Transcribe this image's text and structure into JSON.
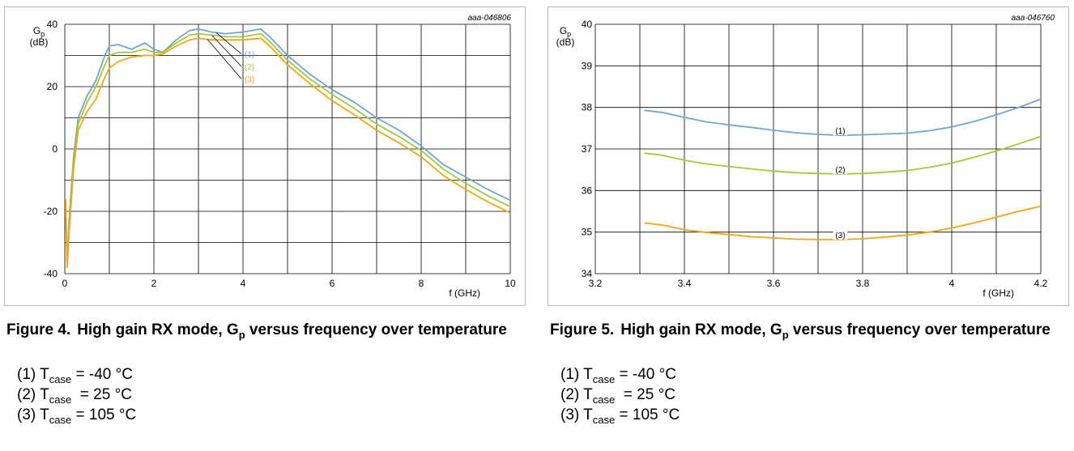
{
  "colors": {
    "t_minus40": "#6ea6d8",
    "t_25": "#a3c93a",
    "t_105": "#f3a512",
    "grid": "#000000"
  },
  "figures": [
    {
      "code": "aaa-046806",
      "caption_number": "Figure 4.",
      "caption_pre": "High gain RX mode, G",
      "caption_sub": "p",
      "caption_post": " versus frequency over temperature",
      "ylabel_main": "G",
      "ylabel_sub": "p",
      "ylabel_unit": "(dB)",
      "xlabel": "f (GHz)",
      "series_labels": [
        "(1)",
        "(2)",
        "(3)"
      ]
    },
    {
      "code": "aaa-046760",
      "caption_number": "Figure 5.",
      "caption_pre": "High gain RX mode, G",
      "caption_sub": "p",
      "caption_post": " versus frequency over temperature",
      "ylabel_main": "G",
      "ylabel_sub": "p",
      "ylabel_unit": "(dB)",
      "xlabel": "f (GHz)",
      "series_labels": [
        "(1)",
        "(2)",
        "(3)"
      ]
    }
  ],
  "notes": [
    {
      "num": "(1)",
      "t": "T",
      "sub": "case",
      "val": " = -40 °C"
    },
    {
      "num": "(2)",
      "t": "T",
      "sub": "case",
      "val": "  = 25 °C"
    },
    {
      "num": "(3)",
      "t": "T",
      "sub": "case",
      "val": " = 105 °C"
    }
  ],
  "chart_data": [
    {
      "type": "line",
      "xlabel": "f (GHz)",
      "ylabel": "Gp (dB)",
      "xlim": [
        0,
        10
      ],
      "ylim": [
        -40,
        40
      ],
      "xticks": [
        0,
        2,
        4,
        6,
        8,
        10
      ],
      "yticks": [
        -40,
        -20,
        0,
        20,
        40
      ],
      "x_grid_step": 1,
      "y_grid_step": 10,
      "grid": true,
      "series": [
        {
          "name": "(1)",
          "color": "#6ea6d8",
          "x": [
            0.02,
            0.05,
            0.1,
            0.2,
            0.3,
            0.5,
            0.7,
            0.9,
            1.0,
            1.2,
            1.5,
            1.8,
            2.0,
            2.2,
            2.5,
            2.8,
            3.0,
            3.3,
            3.6,
            4.0,
            4.4,
            4.6,
            5.0,
            5.5,
            6.0,
            6.5,
            7.0,
            7.5,
            8.0,
            8.5,
            9.0,
            9.5,
            10.0
          ],
          "y": [
            -20,
            -36,
            -22,
            -2,
            10,
            17,
            22,
            30,
            33,
            33.5,
            32,
            34,
            32,
            31,
            35,
            38,
            38.5,
            37.5,
            37,
            37.5,
            38.5,
            36,
            30,
            24,
            19,
            15,
            10,
            6,
            1,
            -5,
            -9,
            -13,
            -16.5
          ]
        },
        {
          "name": "(2)",
          "color": "#a3c93a",
          "x": [
            0.02,
            0.05,
            0.1,
            0.2,
            0.3,
            0.5,
            0.7,
            0.9,
            1.0,
            1.2,
            1.5,
            1.8,
            2.0,
            2.2,
            2.5,
            2.8,
            3.0,
            3.3,
            3.6,
            4.0,
            4.4,
            4.6,
            5.0,
            5.5,
            6.0,
            6.5,
            7.0,
            7.5,
            8.0,
            8.5,
            9.0,
            9.5,
            10.0
          ],
          "y": [
            -18,
            -37,
            -24,
            -4,
            8,
            15,
            20,
            27,
            30,
            31,
            31,
            32,
            31,
            31,
            34,
            36.5,
            37,
            36.5,
            36,
            36,
            37,
            34.5,
            28.5,
            22.5,
            17.5,
            13,
            8,
            4,
            -0.5,
            -6.5,
            -11,
            -15,
            -18.5
          ]
        },
        {
          "name": "(3)",
          "color": "#f3a512",
          "x": [
            0.02,
            0.05,
            0.1,
            0.2,
            0.3,
            0.5,
            0.7,
            0.9,
            1.0,
            1.2,
            1.5,
            1.8,
            2.0,
            2.2,
            2.5,
            2.8,
            3.0,
            3.3,
            3.6,
            4.0,
            4.4,
            4.6,
            5.0,
            5.5,
            6.0,
            6.5,
            7.0,
            7.5,
            8.0,
            8.5,
            9.0,
            9.5,
            10.0
          ],
          "y": [
            -16,
            -38,
            -26,
            -6,
            6,
            12,
            16,
            23,
            26,
            28,
            29.5,
            30,
            30,
            30.5,
            33,
            35,
            35.5,
            35,
            35,
            35,
            35.5,
            33,
            27,
            21,
            15.5,
            11,
            6,
            2,
            -2.5,
            -8.5,
            -13,
            -17,
            -20.5
          ]
        }
      ]
    },
    {
      "type": "line",
      "xlabel": "f (GHz)",
      "ylabel": "Gp (dB)",
      "xlim": [
        3.2,
        4.2
      ],
      "ylim": [
        34,
        40
      ],
      "xticks": [
        3.2,
        3.4,
        3.6,
        3.8,
        4.0,
        4.2
      ],
      "xtick_labels": [
        "3.2",
        "3.4",
        "3.6",
        "3.8",
        "4",
        "4.2"
      ],
      "yticks": [
        34,
        35,
        36,
        37,
        38,
        39,
        40
      ],
      "x_grid_step": 0.1,
      "y_grid_step": 1,
      "grid": true,
      "series": [
        {
          "name": "(1)",
          "color": "#6ea6d8",
          "x": [
            3.31,
            3.35,
            3.4,
            3.45,
            3.5,
            3.55,
            3.6,
            3.65,
            3.7,
            3.75,
            3.8,
            3.85,
            3.9,
            3.95,
            4.0,
            4.05,
            4.1,
            4.15,
            4.2
          ],
          "y": [
            37.93,
            37.88,
            37.76,
            37.65,
            37.58,
            37.52,
            37.45,
            37.39,
            37.35,
            37.33,
            37.34,
            37.36,
            37.38,
            37.44,
            37.53,
            37.66,
            37.82,
            38.0,
            38.2
          ]
        },
        {
          "name": "(2)",
          "color": "#a3c93a",
          "x": [
            3.31,
            3.35,
            3.4,
            3.45,
            3.5,
            3.55,
            3.6,
            3.65,
            3.7,
            3.75,
            3.8,
            3.85,
            3.9,
            3.95,
            4.0,
            4.05,
            4.1,
            4.15,
            4.2
          ],
          "y": [
            36.9,
            36.85,
            36.73,
            36.64,
            36.58,
            36.52,
            36.47,
            36.43,
            36.41,
            36.4,
            36.41,
            36.44,
            36.48,
            36.56,
            36.66,
            36.8,
            36.95,
            37.12,
            37.3
          ]
        },
        {
          "name": "(3)",
          "color": "#f3a512",
          "x": [
            3.31,
            3.35,
            3.4,
            3.45,
            3.5,
            3.55,
            3.6,
            3.65,
            3.7,
            3.75,
            3.8,
            3.85,
            3.9,
            3.95,
            4.0,
            4.05,
            4.1,
            4.15,
            4.2
          ],
          "y": [
            35.22,
            35.17,
            35.06,
            34.99,
            34.94,
            34.89,
            34.86,
            34.83,
            34.82,
            34.82,
            34.84,
            34.88,
            34.93,
            35.0,
            35.1,
            35.22,
            35.36,
            35.5,
            35.62
          ]
        }
      ]
    }
  ]
}
